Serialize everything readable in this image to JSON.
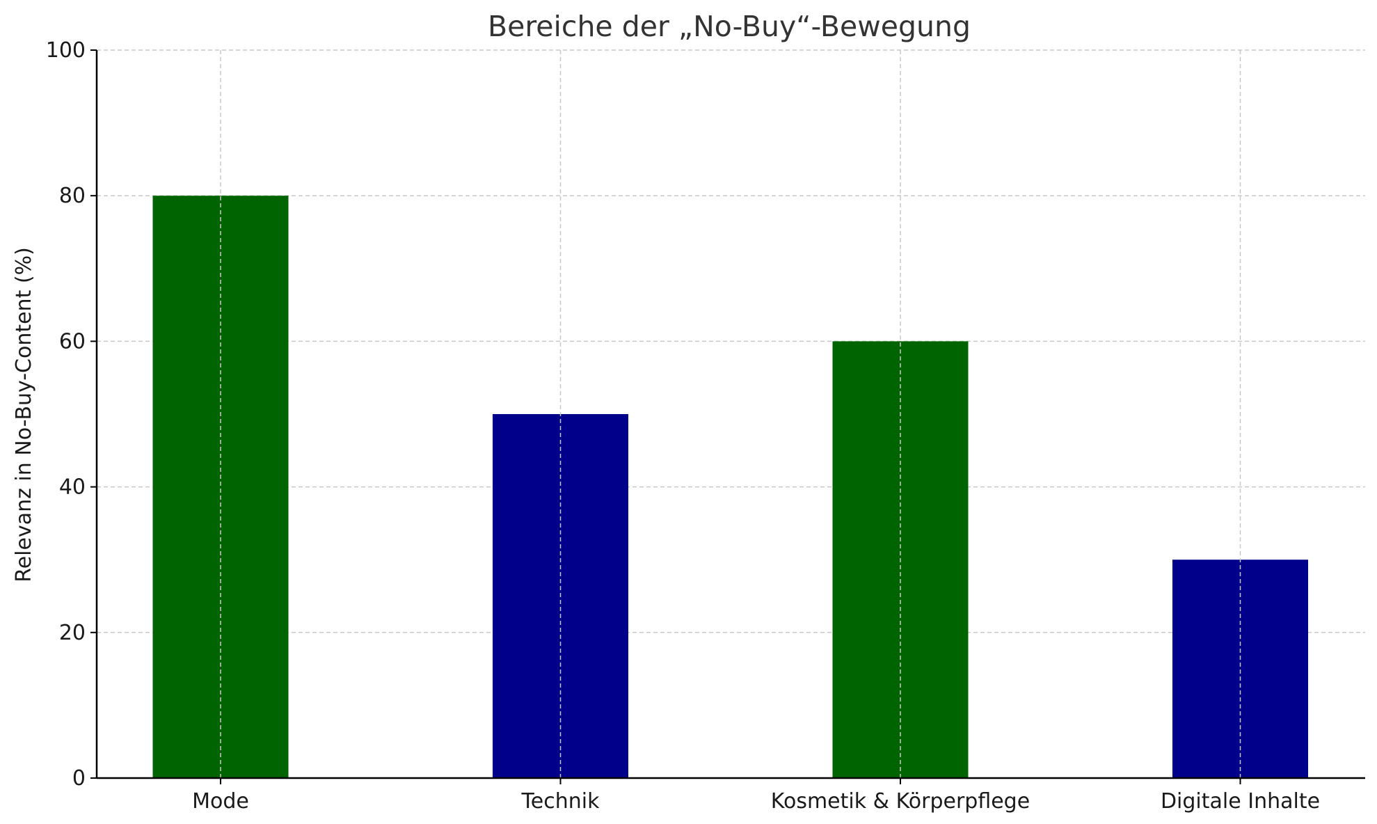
{
  "chart_data": {
    "type": "bar",
    "title": "Bereiche der „No-Buy“-Bewegung",
    "xlabel": "",
    "ylabel": "Relevanz in No-Buy-Content (%)",
    "categories": [
      "Mode",
      "Technik",
      "Kosmetik & Körperpflege",
      "Digitale Inhalte"
    ],
    "values": [
      80,
      50,
      60,
      30
    ],
    "bar_colors": [
      "#006400",
      "#00008b",
      "#006400",
      "#00008b"
    ],
    "ylim": [
      0,
      100
    ],
    "yticks": [
      0,
      20,
      40,
      60,
      80,
      100
    ],
    "grid": true
  }
}
